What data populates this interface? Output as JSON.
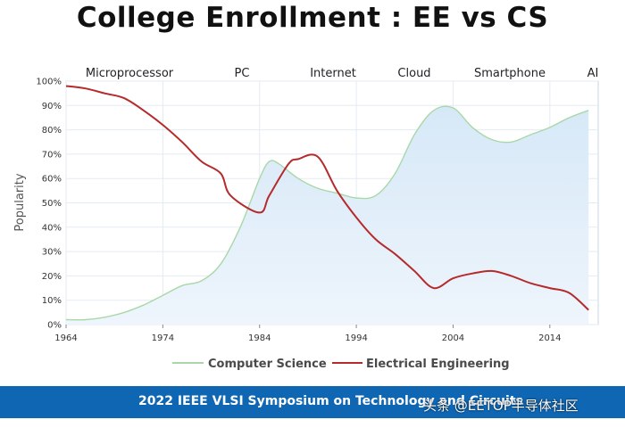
{
  "title": "College Enrollment : EE vs CS",
  "eras": [
    "Microprocessor",
    "PC",
    "Internet",
    "Cloud",
    "Smartphone",
    "AI"
  ],
  "footer": "2022 IEEE VLSI Symposium on Technology and Circuits",
  "watermark": "头条 @EETOP半导体社区",
  "colors": {
    "cs": "#a8d8a8",
    "ee": "#b52b2b",
    "cs_fill": "#dcebf8",
    "footer": "#0f67b4"
  },
  "chart_data": {
    "type": "line",
    "title": "College Enrollment : EE vs CS",
    "xlabel": "",
    "ylabel": "Popularity",
    "xlim": [
      1964,
      2019
    ],
    "ylim": [
      0,
      100
    ],
    "x_ticks": [
      1964,
      1974,
      1984,
      1994,
      2004,
      2014
    ],
    "y_ticks": [
      0,
      10,
      20,
      30,
      40,
      50,
      60,
      70,
      80,
      90,
      100
    ],
    "y_tick_suffix": "%",
    "grid": true,
    "legend_position": "bottom",
    "series": [
      {
        "name": "Computer Science",
        "x": [
          1964,
          1966,
          1968,
          1970,
          1972,
          1974,
          1976,
          1978,
          1980,
          1982,
          1984,
          1985,
          1986,
          1988,
          1990,
          1992,
          1994,
          1996,
          1998,
          2000,
          2002,
          2004,
          2006,
          2008,
          2010,
          2012,
          2014,
          2016,
          2018
        ],
        "y": [
          2,
          2,
          3,
          5,
          8,
          12,
          16,
          18,
          25,
          40,
          60,
          67,
          66,
          60,
          56,
          54,
          52,
          53,
          62,
          78,
          88,
          89,
          81,
          76,
          75,
          78,
          81,
          85,
          88
        ]
      },
      {
        "name": "Electrical Engineering",
        "x": [
          1964,
          1966,
          1968,
          1970,
          1972,
          1974,
          1976,
          1978,
          1980,
          1981,
          1984,
          1985,
          1987,
          1988,
          1990,
          1992,
          1994,
          1996,
          1998,
          2000,
          2002,
          2004,
          2006,
          2008,
          2010,
          2012,
          2014,
          2016,
          2018
        ],
        "y": [
          98,
          97,
          95,
          93,
          88,
          82,
          75,
          67,
          62,
          53,
          46,
          53,
          66,
          68,
          69,
          55,
          44,
          35,
          29,
          22,
          15,
          19,
          21,
          22,
          20,
          17,
          15,
          13,
          6
        ]
      }
    ]
  }
}
